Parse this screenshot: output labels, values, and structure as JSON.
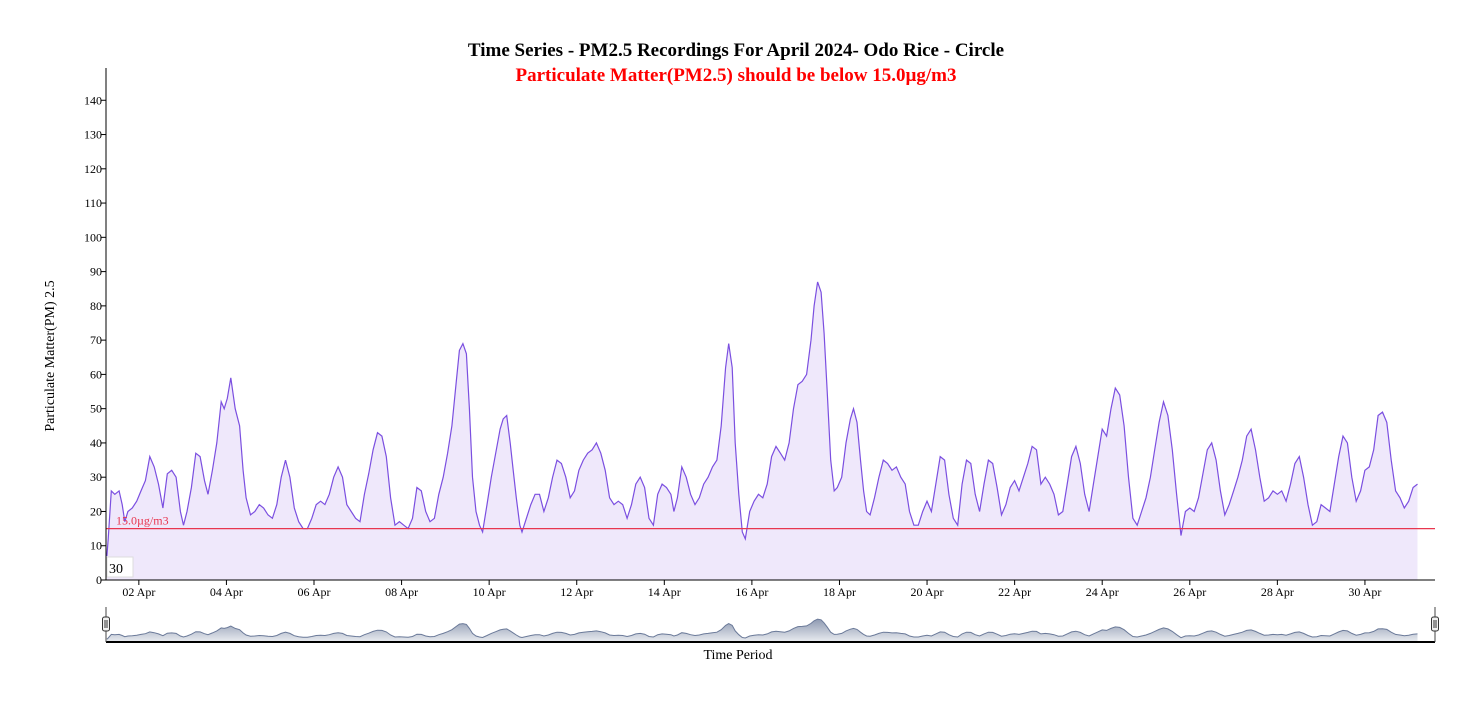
{
  "chart_data": {
    "type": "area",
    "title": "Time Series - PM2.5 Recordings For April 2024- Odo Rice - Circle",
    "subtitle": "Particulate Matter(PM2.5) should be below 15.0µg/m3",
    "xlabel": "Time Period",
    "ylabel": "Particulate Matter(PM) 2.5",
    "ylim": [
      0,
      150
    ],
    "xlim": [
      1.25,
      31.6
    ],
    "yticks": [
      0,
      10,
      20,
      30,
      40,
      50,
      60,
      70,
      80,
      90,
      100,
      110,
      120,
      130,
      140
    ],
    "xticks": [
      {
        "x": 2,
        "label": "02 Apr"
      },
      {
        "x": 4,
        "label": "04 Apr"
      },
      {
        "x": 6,
        "label": "06 Apr"
      },
      {
        "x": 8,
        "label": "08 Apr"
      },
      {
        "x": 10,
        "label": "10 Apr"
      },
      {
        "x": 12,
        "label": "12 Apr"
      },
      {
        "x": 14,
        "label": "14 Apr"
      },
      {
        "x": 16,
        "label": "16 Apr"
      },
      {
        "x": 18,
        "label": "18 Apr"
      },
      {
        "x": 20,
        "label": "20 Apr"
      },
      {
        "x": 22,
        "label": "22 Apr"
      },
      {
        "x": 24,
        "label": "24 Apr"
      },
      {
        "x": 26,
        "label": "26 Apr"
      },
      {
        "x": 28,
        "label": "28 Apr"
      },
      {
        "x": 30,
        "label": "30 Apr"
      }
    ],
    "threshold": {
      "value": 15.0,
      "label": "15.0µg/m3",
      "color": "#e8364f"
    },
    "corner_label": "30",
    "series": [
      {
        "color": "#7b4fe0",
        "fill": "#efe8fb",
        "points": [
          [
            1.27,
            7
          ],
          [
            1.3,
            12
          ],
          [
            1.37,
            26
          ],
          [
            1.45,
            25
          ],
          [
            1.55,
            26
          ],
          [
            1.62,
            22
          ],
          [
            1.68,
            17
          ],
          [
            1.75,
            20
          ],
          [
            1.85,
            21
          ],
          [
            1.95,
            23
          ],
          [
            2.05,
            26
          ],
          [
            2.15,
            29
          ],
          [
            2.25,
            36
          ],
          [
            2.35,
            33
          ],
          [
            2.45,
            28
          ],
          [
            2.55,
            21
          ],
          [
            2.65,
            31
          ],
          [
            2.75,
            32
          ],
          [
            2.85,
            30
          ],
          [
            2.95,
            20
          ],
          [
            3.02,
            16
          ],
          [
            3.1,
            20
          ],
          [
            3.2,
            27
          ],
          [
            3.3,
            37
          ],
          [
            3.4,
            36
          ],
          [
            3.5,
            29
          ],
          [
            3.58,
            25
          ],
          [
            3.68,
            32
          ],
          [
            3.78,
            40
          ],
          [
            3.88,
            52
          ],
          [
            3.95,
            50
          ],
          [
            4.02,
            53
          ],
          [
            4.1,
            59
          ],
          [
            4.2,
            50
          ],
          [
            4.3,
            45
          ],
          [
            4.38,
            32
          ],
          [
            4.45,
            24
          ],
          [
            4.55,
            19
          ],
          [
            4.65,
            20
          ],
          [
            4.75,
            22
          ],
          [
            4.85,
            21
          ],
          [
            4.95,
            19
          ],
          [
            5.05,
            18
          ],
          [
            5.15,
            22
          ],
          [
            5.25,
            30
          ],
          [
            5.35,
            35
          ],
          [
            5.45,
            30
          ],
          [
            5.55,
            21
          ],
          [
            5.65,
            17
          ],
          [
            5.75,
            15
          ],
          [
            5.85,
            15
          ],
          [
            5.95,
            18
          ],
          [
            6.05,
            22
          ],
          [
            6.15,
            23
          ],
          [
            6.25,
            22
          ],
          [
            6.35,
            25
          ],
          [
            6.45,
            30
          ],
          [
            6.55,
            33
          ],
          [
            6.65,
            30
          ],
          [
            6.75,
            22
          ],
          [
            6.85,
            20
          ],
          [
            6.95,
            18
          ],
          [
            7.05,
            17
          ],
          [
            7.15,
            25
          ],
          [
            7.25,
            31
          ],
          [
            7.35,
            38
          ],
          [
            7.45,
            43
          ],
          [
            7.55,
            42
          ],
          [
            7.65,
            36
          ],
          [
            7.75,
            24
          ],
          [
            7.85,
            16
          ],
          [
            7.95,
            17
          ],
          [
            8.05,
            16
          ],
          [
            8.15,
            15
          ],
          [
            8.25,
            18
          ],
          [
            8.35,
            27
          ],
          [
            8.45,
            26
          ],
          [
            8.55,
            20
          ],
          [
            8.65,
            17
          ],
          [
            8.75,
            18
          ],
          [
            8.85,
            25
          ],
          [
            8.95,
            30
          ],
          [
            9.05,
            37
          ],
          [
            9.15,
            45
          ],
          [
            9.25,
            58
          ],
          [
            9.32,
            67
          ],
          [
            9.4,
            69
          ],
          [
            9.48,
            66
          ],
          [
            9.55,
            50
          ],
          [
            9.62,
            30
          ],
          [
            9.7,
            20
          ],
          [
            9.78,
            16
          ],
          [
            9.85,
            14
          ],
          [
            9.95,
            22
          ],
          [
            10.05,
            30
          ],
          [
            10.15,
            37
          ],
          [
            10.25,
            44
          ],
          [
            10.32,
            47
          ],
          [
            10.4,
            48
          ],
          [
            10.48,
            40
          ],
          [
            10.55,
            32
          ],
          [
            10.62,
            24
          ],
          [
            10.7,
            16
          ],
          [
            10.75,
            14
          ],
          [
            10.85,
            18
          ],
          [
            10.95,
            22
          ],
          [
            11.05,
            25
          ],
          [
            11.15,
            25
          ],
          [
            11.25,
            20
          ],
          [
            11.35,
            24
          ],
          [
            11.45,
            30
          ],
          [
            11.55,
            35
          ],
          [
            11.65,
            34
          ],
          [
            11.75,
            30
          ],
          [
            11.85,
            24
          ],
          [
            11.95,
            26
          ],
          [
            12.05,
            32
          ],
          [
            12.15,
            35
          ],
          [
            12.25,
            37
          ],
          [
            12.35,
            38
          ],
          [
            12.45,
            40
          ],
          [
            12.55,
            37
          ],
          [
            12.65,
            32
          ],
          [
            12.75,
            24
          ],
          [
            12.85,
            22
          ],
          [
            12.95,
            23
          ],
          [
            13.05,
            22
          ],
          [
            13.15,
            18
          ],
          [
            13.25,
            22
          ],
          [
            13.35,
            28
          ],
          [
            13.45,
            30
          ],
          [
            13.55,
            27
          ],
          [
            13.65,
            18
          ],
          [
            13.75,
            16
          ],
          [
            13.85,
            25
          ],
          [
            13.95,
            28
          ],
          [
            14.05,
            27
          ],
          [
            14.15,
            25
          ],
          [
            14.22,
            20
          ],
          [
            14.3,
            24
          ],
          [
            14.4,
            33
          ],
          [
            14.5,
            30
          ],
          [
            14.6,
            25
          ],
          [
            14.7,
            22
          ],
          [
            14.8,
            24
          ],
          [
            14.9,
            28
          ],
          [
            15.0,
            30
          ],
          [
            15.1,
            33
          ],
          [
            15.2,
            35
          ],
          [
            15.3,
            45
          ],
          [
            15.4,
            62
          ],
          [
            15.47,
            69
          ],
          [
            15.55,
            62
          ],
          [
            15.62,
            40
          ],
          [
            15.7,
            25
          ],
          [
            15.78,
            14
          ],
          [
            15.85,
            12
          ],
          [
            15.95,
            20
          ],
          [
            16.05,
            23
          ],
          [
            16.15,
            25
          ],
          [
            16.25,
            24
          ],
          [
            16.35,
            28
          ],
          [
            16.45,
            36
          ],
          [
            16.55,
            39
          ],
          [
            16.65,
            37
          ],
          [
            16.75,
            35
          ],
          [
            16.85,
            40
          ],
          [
            16.95,
            50
          ],
          [
            17.05,
            57
          ],
          [
            17.15,
            58
          ],
          [
            17.25,
            60
          ],
          [
            17.35,
            70
          ],
          [
            17.42,
            80
          ],
          [
            17.5,
            87
          ],
          [
            17.58,
            84
          ],
          [
            17.65,
            72
          ],
          [
            17.72,
            55
          ],
          [
            17.8,
            35
          ],
          [
            17.88,
            26
          ],
          [
            17.95,
            27
          ],
          [
            18.05,
            30
          ],
          [
            18.15,
            40
          ],
          [
            18.25,
            47
          ],
          [
            18.32,
            50
          ],
          [
            18.4,
            46
          ],
          [
            18.48,
            35
          ],
          [
            18.55,
            26
          ],
          [
            18.62,
            20
          ],
          [
            18.7,
            19
          ],
          [
            18.8,
            24
          ],
          [
            18.9,
            30
          ],
          [
            19.0,
            35
          ],
          [
            19.1,
            34
          ],
          [
            19.2,
            32
          ],
          [
            19.3,
            33
          ],
          [
            19.4,
            30
          ],
          [
            19.5,
            28
          ],
          [
            19.6,
            20
          ],
          [
            19.7,
            16
          ],
          [
            19.8,
            16
          ],
          [
            19.9,
            20
          ],
          [
            20.0,
            23
          ],
          [
            20.1,
            20
          ],
          [
            20.2,
            28
          ],
          [
            20.3,
            36
          ],
          [
            20.4,
            35
          ],
          [
            20.5,
            25
          ],
          [
            20.6,
            18
          ],
          [
            20.7,
            16
          ],
          [
            20.8,
            28
          ],
          [
            20.9,
            35
          ],
          [
            21.0,
            34
          ],
          [
            21.1,
            25
          ],
          [
            21.2,
            20
          ],
          [
            21.3,
            28
          ],
          [
            21.4,
            35
          ],
          [
            21.5,
            34
          ],
          [
            21.6,
            27
          ],
          [
            21.7,
            19
          ],
          [
            21.8,
            22
          ],
          [
            21.9,
            27
          ],
          [
            22.0,
            29
          ],
          [
            22.1,
            26
          ],
          [
            22.2,
            30
          ],
          [
            22.3,
            34
          ],
          [
            22.4,
            39
          ],
          [
            22.5,
            38
          ],
          [
            22.6,
            28
          ],
          [
            22.7,
            30
          ],
          [
            22.8,
            28
          ],
          [
            22.9,
            25
          ],
          [
            23.0,
            19
          ],
          [
            23.1,
            20
          ],
          [
            23.2,
            28
          ],
          [
            23.3,
            36
          ],
          [
            23.4,
            39
          ],
          [
            23.5,
            34
          ],
          [
            23.6,
            25
          ],
          [
            23.7,
            20
          ],
          [
            23.8,
            28
          ],
          [
            23.9,
            36
          ],
          [
            24.0,
            44
          ],
          [
            24.1,
            42
          ],
          [
            24.2,
            50
          ],
          [
            24.3,
            56
          ],
          [
            24.4,
            54
          ],
          [
            24.5,
            45
          ],
          [
            24.6,
            30
          ],
          [
            24.7,
            18
          ],
          [
            24.8,
            16
          ],
          [
            24.9,
            20
          ],
          [
            25.0,
            24
          ],
          [
            25.1,
            30
          ],
          [
            25.2,
            38
          ],
          [
            25.3,
            46
          ],
          [
            25.4,
            52
          ],
          [
            25.5,
            48
          ],
          [
            25.6,
            38
          ],
          [
            25.7,
            25
          ],
          [
            25.8,
            13
          ],
          [
            25.9,
            20
          ],
          [
            26.0,
            21
          ],
          [
            26.1,
            20
          ],
          [
            26.2,
            24
          ],
          [
            26.3,
            31
          ],
          [
            26.4,
            38
          ],
          [
            26.5,
            40
          ],
          [
            26.6,
            35
          ],
          [
            26.7,
            26
          ],
          [
            26.8,
            19
          ],
          [
            26.9,
            22
          ],
          [
            27.0,
            26
          ],
          [
            27.1,
            30
          ],
          [
            27.2,
            35
          ],
          [
            27.3,
            42
          ],
          [
            27.4,
            44
          ],
          [
            27.5,
            38
          ],
          [
            27.6,
            30
          ],
          [
            27.7,
            23
          ],
          [
            27.8,
            24
          ],
          [
            27.9,
            26
          ],
          [
            28.0,
            25
          ],
          [
            28.1,
            26
          ],
          [
            28.2,
            23
          ],
          [
            28.3,
            28
          ],
          [
            28.4,
            34
          ],
          [
            28.5,
            36
          ],
          [
            28.6,
            30
          ],
          [
            28.7,
            22
          ],
          [
            28.8,
            16
          ],
          [
            28.9,
            17
          ],
          [
            29.0,
            22
          ],
          [
            29.1,
            21
          ],
          [
            29.2,
            20
          ],
          [
            29.3,
            28
          ],
          [
            29.4,
            36
          ],
          [
            29.5,
            42
          ],
          [
            29.6,
            40
          ],
          [
            29.7,
            30
          ],
          [
            29.8,
            23
          ],
          [
            29.9,
            26
          ],
          [
            30.0,
            32
          ],
          [
            30.1,
            33
          ],
          [
            30.2,
            38
          ],
          [
            30.3,
            48
          ],
          [
            30.4,
            49
          ],
          [
            30.5,
            46
          ],
          [
            30.6,
            35
          ],
          [
            30.7,
            26
          ],
          [
            30.8,
            24
          ],
          [
            30.9,
            21
          ],
          [
            31.0,
            23
          ],
          [
            31.1,
            27
          ],
          [
            31.2,
            28
          ]
        ]
      }
    ]
  }
}
